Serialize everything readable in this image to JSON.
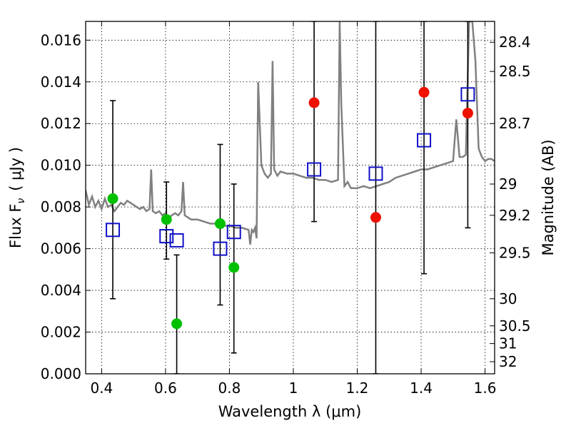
{
  "chart_data": {
    "type": "scatter",
    "xlabel": "Wavelength  λ (μm)",
    "ylabel": "Flux  F",
    "ylabel_sub": "ν",
    "ylabel_unit": "( μJy )",
    "ylabel_right": "Magnitude (AB)",
    "xlim": [
      0.35,
      1.63
    ],
    "ylim": [
      0.0,
      0.0169
    ],
    "x_ticks": [
      0.4,
      0.6,
      0.8,
      1.0,
      1.2,
      1.4,
      1.6
    ],
    "x_tick_labels": [
      "0.4",
      "0.6",
      "0.8",
      "1",
      "1.2",
      "1.4",
      "1.6"
    ],
    "y_ticks": [
      0.0,
      0.002,
      0.004,
      0.006,
      0.008,
      0.01,
      0.012,
      0.014,
      0.016
    ],
    "y_tick_labels": [
      "0.000",
      "0.002",
      "0.004",
      "0.006",
      "0.008",
      "0.010",
      "0.012",
      "0.014",
      "0.016"
    ],
    "right_ticks": [
      {
        "label": "28.4",
        "flux": 0.0159
      },
      {
        "label": "28.5",
        "flux": 0.0145
      },
      {
        "label": "28.7",
        "flux": 0.012
      },
      {
        "label": "29",
        "flux": 0.0091
      },
      {
        "label": "29.2",
        "flux": 0.0076
      },
      {
        "label": "29.5",
        "flux": 0.0058
      },
      {
        "label": "30",
        "flux": 0.0036
      },
      {
        "label": "30.5",
        "flux": 0.0023
      },
      {
        "label": "31",
        "flux": 0.00145
      },
      {
        "label": "32",
        "flux": 0.00058
      }
    ],
    "grid": true,
    "colors": {
      "spectrum": "#808080",
      "detection": "#00c000",
      "upper": "#ee1100",
      "model": "#1010c8",
      "errorbar": "#000000"
    },
    "spectrum": {
      "name": "",
      "x": [
        0.35,
        0.36,
        0.37,
        0.38,
        0.39,
        0.4,
        0.41,
        0.42,
        0.43,
        0.44,
        0.45,
        0.46,
        0.47,
        0.48,
        0.49,
        0.5,
        0.51,
        0.52,
        0.53,
        0.54,
        0.55,
        0.555,
        0.56,
        0.57,
        0.58,
        0.59,
        0.6,
        0.61,
        0.62,
        0.63,
        0.64,
        0.65,
        0.655,
        0.66,
        0.67,
        0.68,
        0.7,
        0.72,
        0.74,
        0.76,
        0.78,
        0.8,
        0.82,
        0.84,
        0.86,
        0.865,
        0.87,
        0.875,
        0.88,
        0.885,
        0.89,
        0.9,
        0.91,
        0.92,
        0.93,
        0.935,
        0.94,
        0.95,
        0.96,
        0.98,
        1.0,
        1.02,
        1.04,
        1.06,
        1.08,
        1.1,
        1.12,
        1.14,
        1.145,
        1.15,
        1.16,
        1.17,
        1.18,
        1.2,
        1.22,
        1.24,
        1.26,
        1.28,
        1.3,
        1.32,
        1.34,
        1.36,
        1.38,
        1.4,
        1.42,
        1.44,
        1.46,
        1.48,
        1.5,
        1.51,
        1.52,
        1.53,
        1.54,
        1.55,
        1.56,
        1.57,
        1.58,
        1.59,
        1.6,
        1.61,
        1.62,
        1.63
      ],
      "y": [
        0.0088,
        0.0081,
        0.0085,
        0.008,
        0.0083,
        0.0079,
        0.0084,
        0.008,
        0.0081,
        0.0078,
        0.008,
        0.0082,
        0.0081,
        0.0083,
        0.0082,
        0.0081,
        0.008,
        0.0079,
        0.008,
        0.0078,
        0.0079,
        0.0098,
        0.0078,
        0.0077,
        0.0078,
        0.0076,
        0.0077,
        0.0075,
        0.0076,
        0.0077,
        0.0076,
        0.0078,
        0.0092,
        0.0076,
        0.0075,
        0.0074,
        0.0074,
        0.0073,
        0.0072,
        0.0072,
        0.0071,
        0.0071,
        0.007,
        0.007,
        0.0069,
        0.0062,
        0.0069,
        0.0068,
        0.007,
        0.0065,
        0.014,
        0.01,
        0.0096,
        0.0094,
        0.0096,
        0.015,
        0.0098,
        0.0095,
        0.0097,
        0.0096,
        0.0096,
        0.0095,
        0.0094,
        0.0094,
        0.0093,
        0.0093,
        0.0092,
        0.0093,
        0.0169,
        0.013,
        0.009,
        0.0092,
        0.0089,
        0.0089,
        0.009,
        0.0089,
        0.009,
        0.0091,
        0.0092,
        0.0094,
        0.0095,
        0.0096,
        0.0097,
        0.0098,
        0.0098,
        0.0099,
        0.01,
        0.0101,
        0.0102,
        0.0122,
        0.0104,
        0.0104,
        0.0105,
        0.0169,
        0.0169,
        0.015,
        0.0108,
        0.0104,
        0.0102,
        0.0103,
        0.0103,
        0.0102
      ]
    },
    "detections": {
      "name": "",
      "x": [
        0.435,
        0.603,
        0.635,
        0.771,
        0.814
      ],
      "y": [
        0.0084,
        0.0074,
        0.0024,
        0.0072,
        0.0051
      ]
    },
    "upper_limits": {
      "name": "",
      "x": [
        1.065,
        1.258,
        1.409,
        1.546
      ],
      "y": [
        0.013,
        0.0075,
        0.0135,
        0.0125
      ]
    },
    "model_points": {
      "name": "",
      "x": [
        0.435,
        0.603,
        0.635,
        0.771,
        0.814,
        1.065,
        1.258,
        1.409,
        1.546
      ],
      "y": [
        0.0069,
        0.0066,
        0.0064,
        0.006,
        0.0068,
        0.0098,
        0.0096,
        0.0112,
        0.0134
      ]
    },
    "error_bars": [
      {
        "x": 0.435,
        "low": 0.0036,
        "high": 0.0131
      },
      {
        "x": 0.603,
        "low": 0.0055,
        "high": 0.0092
      },
      {
        "x": 0.635,
        "low": 0.0,
        "high": 0.0057
      },
      {
        "x": 0.771,
        "low": 0.0033,
        "high": 0.011
      },
      {
        "x": 0.814,
        "low": 0.001,
        "high": 0.0091
      },
      {
        "x": 1.065,
        "low": 0.0073,
        "high": 0.0169
      },
      {
        "x": 1.258,
        "low": 0.0,
        "high": 0.0169
      },
      {
        "x": 1.409,
        "low": 0.0048,
        "high": 0.0169
      },
      {
        "x": 1.546,
        "low": 0.007,
        "high": 0.0169
      }
    ]
  }
}
